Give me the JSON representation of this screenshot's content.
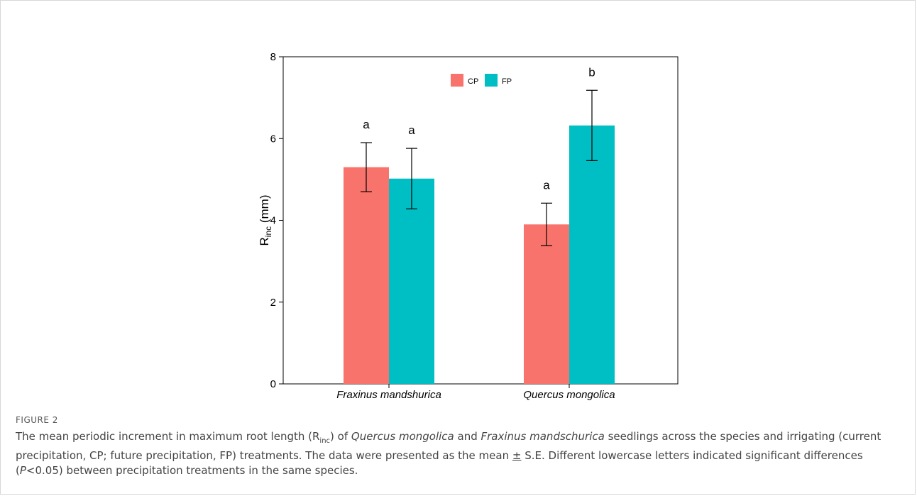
{
  "figure": {
    "label": "FIGURE 2",
    "caption_parts": [
      {
        "text": "The mean periodic increment in maximum root length (R",
        "style": "normal"
      },
      {
        "text": "inc",
        "style": "sub"
      },
      {
        "text": ") of ",
        "style": "normal"
      },
      {
        "text": "Quercus mongolica",
        "style": "italic"
      },
      {
        "text": " and ",
        "style": "normal"
      },
      {
        "text": "Fraxinus mandschurica",
        "style": "italic"
      },
      {
        "text": " seedlings across the species and irrigating (current precipitation, CP; future precipitation, FP) treatments. The data were presented as the mean ",
        "style": "normal"
      },
      {
        "text": "±",
        "style": "underline"
      },
      {
        "text": " S.E. Different lowercase letters indicated significant differences (",
        "style": "normal"
      },
      {
        "text": "P",
        "style": "italic"
      },
      {
        "text": "<0.05) between precipitation treatments in the same species.",
        "style": "normal"
      }
    ]
  },
  "chart_data": {
    "type": "bar",
    "categories": [
      "Fraxinus mandshurica",
      "Quercus mongolica"
    ],
    "series": [
      {
        "name": "CP",
        "color": "#f8736b",
        "values": [
          5.3,
          3.9
        ],
        "se": [
          0.6,
          0.52
        ],
        "letters": [
          "a",
          "a"
        ]
      },
      {
        "name": "FP",
        "color": "#00bfc4",
        "values": [
          5.02,
          6.32
        ],
        "se": [
          0.74,
          0.86
        ],
        "letters": [
          "a",
          "b"
        ]
      }
    ],
    "ylabel_main": "R",
    "ylabel_sub": "inc",
    "ylabel_unit": " (mm)",
    "ylim": [
      0,
      8
    ],
    "yticks": [
      0,
      2,
      4,
      6,
      8
    ],
    "legend_placement": "top-center",
    "grid": false
  }
}
